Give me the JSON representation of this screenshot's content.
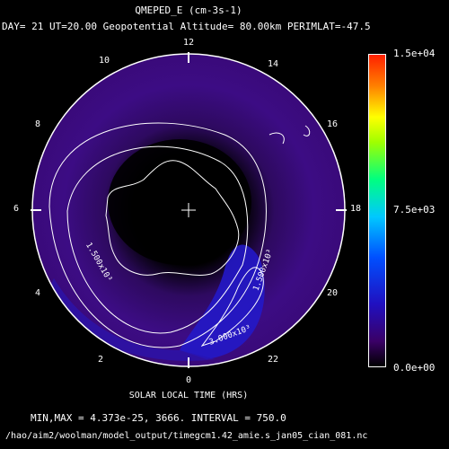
{
  "title": "QMEPED_E (cm-3s-1)",
  "subtitle": "DAY= 21 UT=20.00 Geopotential Altitude= 80.00km PERIMLAT=-47.5",
  "hours": [
    "12",
    "14",
    "16",
    "18",
    "20",
    "22",
    "0",
    "2",
    "4",
    "6",
    "8",
    "10"
  ],
  "colorbar": {
    "max": "1.5e+04",
    "mid": "7.5e+03",
    "min": "0.0e+00"
  },
  "contour_labels": [
    "1.500x10³",
    "1.500x10³",
    "3.000x10³"
  ],
  "xaxis_label": "SOLAR LOCAL TIME (HRS)",
  "minmax": "MIN,MAX =  4.373e-25,     3666. INTERVAL =      750.0",
  "filepath": "/hao/aim2/woolman/model_output/timegcm1.42_amie.s_jan05_cian_081.nc",
  "colors": {
    "field_low": "#3a0a7a",
    "field_high": "#2a1ae0",
    "contour": "#ffffff"
  }
}
